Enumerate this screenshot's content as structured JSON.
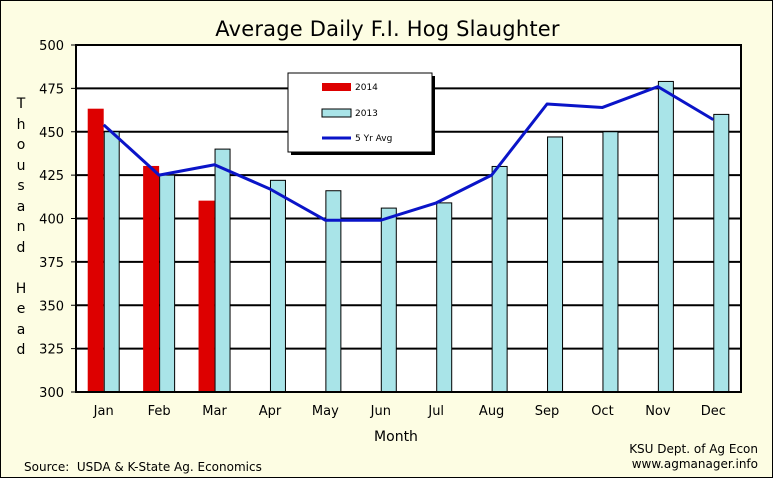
{
  "chart_data": {
    "type": "bar",
    "title": "Average Daily F.I. Hog Slaughter",
    "xlabel": "Month",
    "ylabel": "Thousand Head",
    "ylim": [
      300,
      500
    ],
    "yticks": [
      300,
      325,
      350,
      375,
      400,
      425,
      450,
      475,
      500
    ],
    "grid": true,
    "legend_position": "top-center",
    "categories": [
      "Jan",
      "Feb",
      "Mar",
      "Apr",
      "May",
      "Jun",
      "Jul",
      "Aug",
      "Sep",
      "Oct",
      "Nov",
      "Dec"
    ],
    "series": [
      {
        "name": "2014",
        "type": "bar",
        "color": "#dd0000",
        "values": [
          463,
          430,
          410,
          null,
          null,
          null,
          null,
          null,
          null,
          null,
          null,
          null
        ]
      },
      {
        "name": "2013",
        "type": "bar",
        "color": "#a9e4e8",
        "values": [
          450,
          425,
          440,
          422,
          416,
          406,
          409,
          430,
          447,
          450,
          479,
          460
        ]
      },
      {
        "name": "5 Yr Avg",
        "type": "line",
        "color": "#0a14c8",
        "values": [
          454,
          425,
          431,
          417,
          399,
          399,
          409,
          425,
          466,
          464,
          476,
          457
        ]
      }
    ]
  },
  "footer": {
    "source": "Source:  USDA & K-State Ag. Economics",
    "credit_line1": "KSU Dept. of Ag Econ",
    "credit_line2": "www.agmanager.info"
  }
}
